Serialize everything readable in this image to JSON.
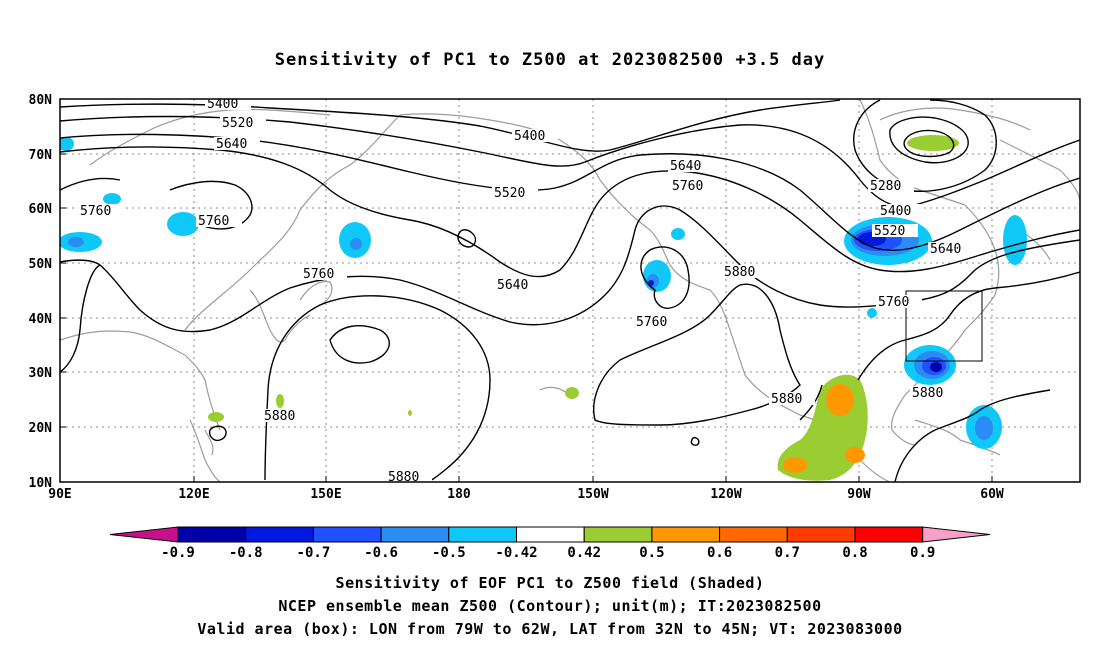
{
  "title": "Sensitivity of PC1 to Z500 at 2023082500 +3.5 day",
  "lat_labels": [
    "80N",
    "70N",
    "60N",
    "50N",
    "40N",
    "30N",
    "20N",
    "10N"
  ],
  "lon_labels": [
    "90E",
    "120E",
    "150E",
    "180",
    "150W",
    "120W",
    "90W",
    "60W"
  ],
  "contour_labels": {
    "c5400a": "5400",
    "c5520a": "5520",
    "c5640a": "5640",
    "c5760a": "5760",
    "c5760b": "5760",
    "c5760c": "5760",
    "c5400b": "5400",
    "c5520b": "5520",
    "c5640b": "5640",
    "c5760d": "5760",
    "c5640c": "5640",
    "c5760e": "5760",
    "c5880a": "5880",
    "c5880b": "5880",
    "c5880c": "5880",
    "c5280": "5280",
    "c5400c": "5400",
    "c5520c": "5520",
    "c5640d": "5640",
    "c5760f": "5760",
    "c5880d": "5880",
    "c5880e": "5880"
  },
  "colorbar": {
    "labels": [
      "-0.9",
      "-0.8",
      "-0.7",
      "-0.6",
      "-0.5",
      "-0.42",
      "0.42",
      "0.5",
      "0.6",
      "0.7",
      "0.8",
      "0.9"
    ],
    "colors": [
      "#0000a8",
      "#0018e0",
      "#2050ff",
      "#2a8cf4",
      "#10c8f8",
      "#ffffff",
      "#9acd32",
      "#ff9800",
      "#ff6a00",
      "#ff3c00",
      "#ff0000"
    ],
    "low_end_color": "#c8108a",
    "high_end_color": "#f8a0c8"
  },
  "caption": {
    "line1": "Sensitivity of EOF PC1 to Z500 field (Shaded)",
    "line2": "NCEP ensemble mean Z500 (Contour); unit(m); IT:2023082500",
    "line3": "Valid area (box): LON from 79W to 62W, LAT from 32N to 45N; VT: 2023083000"
  }
}
